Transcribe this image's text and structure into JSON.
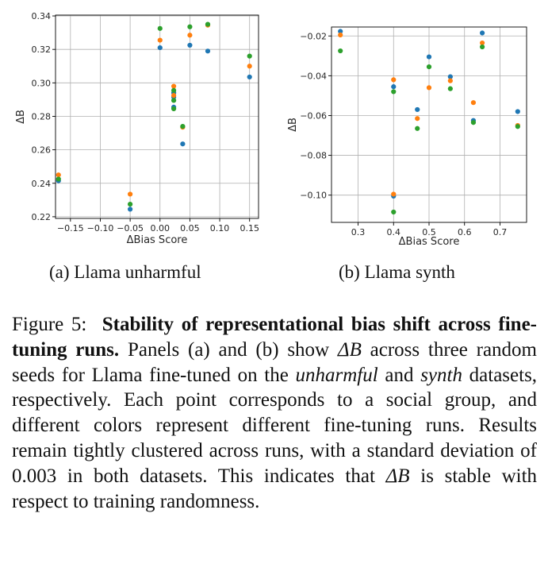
{
  "chart_data": [
    {
      "type": "scatter",
      "title": "",
      "xlabel": "ΔBias Score",
      "ylabel": "ΔB",
      "xlim": [
        -0.175,
        0.165
      ],
      "ylim": [
        0.219,
        0.3405
      ],
      "xticks": [
        -0.15,
        -0.1,
        -0.05,
        0.0,
        0.05,
        0.1,
        0.15
      ],
      "xtick_labels": [
        "−0.15",
        "−0.10",
        "−0.05",
        "0.00",
        "0.05",
        "0.10",
        "0.15"
      ],
      "yticks": [
        0.22,
        0.24,
        0.26,
        0.28,
        0.3,
        0.32,
        0.34
      ],
      "ytick_labels": [
        "0.22",
        "0.24",
        "0.26",
        "0.28",
        "0.30",
        "0.32",
        "0.34"
      ],
      "grid": true,
      "legend": "none",
      "series": [
        {
          "color": "#1f77b4",
          "points": [
            [
              -0.17,
              0.2415
            ],
            [
              -0.05,
              0.2245
            ],
            [
              0.0,
              0.321
            ],
            [
              0.023,
              0.2855
            ],
            [
              0.023,
              0.2915
            ],
            [
              0.023,
              0.294
            ],
            [
              0.038,
              0.2635
            ],
            [
              0.05,
              0.3225
            ],
            [
              0.08,
              0.319
            ],
            [
              0.15,
              0.3035
            ]
          ]
        },
        {
          "color": "#ff7f0e",
          "points": [
            [
              -0.17,
              0.245
            ],
            [
              -0.05,
              0.2335
            ],
            [
              0.0,
              0.3255
            ],
            [
              0.023,
              0.298
            ],
            [
              0.023,
              0.2925
            ],
            [
              0.038,
              0.2735
            ],
            [
              0.05,
              0.3285
            ],
            [
              0.08,
              0.3345
            ],
            [
              0.15,
              0.31
            ]
          ]
        },
        {
          "color": "#2ca02c",
          "points": [
            [
              -0.17,
              0.2425
            ],
            [
              -0.05,
              0.2275
            ],
            [
              0.0,
              0.3325
            ],
            [
              0.023,
              0.2955
            ],
            [
              0.023,
              0.2845
            ],
            [
              0.023,
              0.2895
            ],
            [
              0.038,
              0.274
            ],
            [
              0.05,
              0.3335
            ],
            [
              0.08,
              0.335
            ],
            [
              0.15,
              0.316
            ]
          ]
        }
      ]
    },
    {
      "type": "scatter",
      "title": "",
      "xlabel": "ΔBias Score",
      "ylabel": "ΔB",
      "xlim": [
        0.225,
        0.775
      ],
      "ylim": [
        -0.1137,
        -0.0155
      ],
      "xticks": [
        0.3,
        0.4,
        0.5,
        0.6,
        0.7
      ],
      "xtick_labels": [
        "0.3",
        "0.4",
        "0.5",
        "0.6",
        "0.7"
      ],
      "yticks": [
        -0.02,
        -0.04,
        -0.06,
        -0.08,
        -0.1
      ],
      "ytick_labels": [
        "−0.02",
        "−0.04",
        "−0.06",
        "−0.08",
        "−0.10"
      ],
      "grid": true,
      "legend": "none",
      "series": [
        {
          "color": "#1f77b4",
          "points": [
            [
              0.25,
              -0.0177
            ],
            [
              0.4,
              -0.0455
            ],
            [
              0.4,
              -0.1005
            ],
            [
              0.467,
              -0.057
            ],
            [
              0.5,
              -0.0305
            ],
            [
              0.56,
              -0.0405
            ],
            [
              0.625,
              -0.0625
            ],
            [
              0.65,
              -0.0185
            ],
            [
              0.75,
              -0.058
            ]
          ]
        },
        {
          "color": "#ff7f0e",
          "points": [
            [
              0.25,
              -0.0195
            ],
            [
              0.4,
              -0.042
            ],
            [
              0.4,
              -0.0995
            ],
            [
              0.467,
              -0.0615
            ],
            [
              0.5,
              -0.046
            ],
            [
              0.56,
              -0.0425
            ],
            [
              0.625,
              -0.0535
            ],
            [
              0.65,
              -0.0235
            ],
            [
              0.75,
              -0.065
            ]
          ]
        },
        {
          "color": "#2ca02c",
          "points": [
            [
              0.25,
              -0.0275
            ],
            [
              0.4,
              -0.048
            ],
            [
              0.4,
              -0.1085
            ],
            [
              0.467,
              -0.0665
            ],
            [
              0.5,
              -0.0355
            ],
            [
              0.56,
              -0.0465
            ],
            [
              0.625,
              -0.0635
            ],
            [
              0.65,
              -0.0255
            ],
            [
              0.75,
              -0.0655
            ]
          ]
        }
      ]
    }
  ],
  "subcaptions": {
    "a": "(a) Llama unharmful",
    "b": "(b) Llama synth"
  },
  "caption": {
    "label": "Figure 5:",
    "bold": "Stability of representational bias shift across fine-tuning runs.",
    "t1": "Panels (a) and (b) show",
    "math1": "ΔB",
    "t2": "across three random seeds for Llama fine-tuned on the",
    "em1": "unharmful",
    "t3": "and",
    "em2": "synth",
    "t4": "datasets, respectively. Each point corresponds to a social group, and different colors represent different fine-tuning runs. Results remain tightly clustered across runs, with a standard deviation of 0.003 in both datasets. This indicates that",
    "math2": "ΔB",
    "t5": "is stable with respect to training randomness."
  }
}
